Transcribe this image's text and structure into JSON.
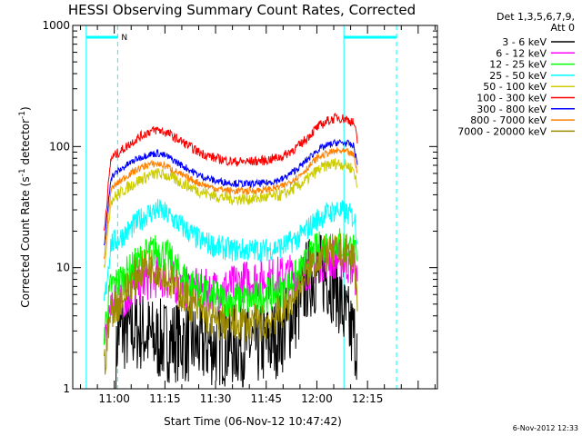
{
  "chart_data": {
    "type": "line",
    "title": "HESSI Observing Summary Count Rates, Corrected",
    "xlabel": "Start Time (06-Nov-12 10:47:42)",
    "ylabel": "Corrected Count Rate (s",
    "ylabel_sup": "-1",
    "ylabel_tail": " detector",
    "ylabel_end": ")",
    "yscale": "log",
    "ylim": [
      1,
      1000
    ],
    "xlim_min": [
      -12.3,
      35.7
    ],
    "x_units": "minutes after 11:00 UT",
    "y_ticks": [
      "1",
      "10",
      "100",
      "1000"
    ],
    "x_ticks": [
      {
        "min": 0,
        "label": "11:00"
      },
      {
        "min": 15,
        "label": "11:15"
      },
      {
        "min": 30,
        "label": "11:30"
      },
      {
        "min": 45,
        "label": "11:45"
      },
      {
        "min": 60,
        "label": "12:00"
      },
      {
        "min": 75,
        "label": "12:15"
      }
    ],
    "legend_header": [
      "Det 1,3,5,6,7,9,",
      "Att 0"
    ],
    "legend_placement": "right",
    "night_intervals": [
      {
        "start": -8.3,
        "end": 1.0,
        "label": "N"
      },
      {
        "start": 68.0,
        "end": 83.6,
        "label": ""
      }
    ],
    "night_color": "#00ffff",
    "series": [
      {
        "name": "3 - 6 keV",
        "color": "#000000",
        "x": [
          0.5,
          1.0,
          2,
          3,
          5,
          8,
          12,
          16,
          20,
          25,
          30,
          35,
          40,
          45,
          50,
          55,
          57,
          60,
          63,
          66,
          68,
          70,
          72
        ],
        "y": [
          1.3,
          3,
          3,
          3,
          3,
          3,
          2.5,
          2.5,
          2.5,
          2.3,
          2.3,
          2.3,
          2.3,
          2.3,
          3,
          5,
          8,
          9,
          8.5,
          7,
          4,
          3,
          2.5
        ],
        "noise": 0.35
      },
      {
        "name": "6 - 12 keV",
        "color": "#ff00ff",
        "x": [
          -3,
          -1,
          1,
          4,
          7,
          10,
          13,
          16,
          20,
          25,
          30,
          35,
          40,
          45,
          50,
          55,
          58,
          60,
          63,
          66,
          69,
          71,
          72
        ],
        "y": [
          2,
          5,
          5,
          6,
          7,
          8,
          8.5,
          8,
          7,
          6.5,
          6.5,
          7,
          8,
          8,
          8.5,
          9,
          10,
          11,
          12,
          12,
          11,
          10,
          7
        ],
        "noise": 0.18
      },
      {
        "name": "12 - 25 keV",
        "color": "#00ff00",
        "x": [
          -3,
          -1,
          1,
          4,
          7,
          10,
          13,
          16,
          20,
          25,
          30,
          35,
          40,
          45,
          50,
          55,
          58,
          60,
          63,
          66,
          69,
          71,
          72
        ],
        "y": [
          3,
          7,
          7.5,
          9,
          11,
          13,
          14,
          12,
          8.5,
          6.5,
          5.5,
          5.5,
          5.5,
          6,
          6.5,
          9,
          12,
          14,
          15.5,
          16,
          15,
          14,
          10
        ],
        "noise": 0.15
      },
      {
        "name": "25 - 50 keV",
        "color": "#00ffff",
        "x": [
          -3,
          -1,
          1,
          4,
          7,
          10,
          13,
          16,
          20,
          25,
          30,
          35,
          40,
          45,
          50,
          55,
          58,
          60,
          63,
          66,
          69,
          71,
          72
        ],
        "y": [
          5,
          16,
          17,
          20,
          24,
          28,
          30,
          27,
          22,
          17,
          15,
          14,
          14,
          14,
          15,
          18,
          22,
          25,
          28,
          30,
          28,
          26,
          18
        ],
        "noise": 0.1
      },
      {
        "name": "50 - 100 keV",
        "color": "#cccc00",
        "x": [
          -3,
          -1,
          1,
          4,
          7,
          10,
          13,
          16,
          20,
          25,
          30,
          35,
          40,
          45,
          50,
          55,
          58,
          60,
          63,
          66,
          69,
          71,
          72
        ],
        "y": [
          10,
          36,
          40,
          46,
          52,
          57,
          60,
          57,
          50,
          43,
          39,
          37,
          37,
          38,
          40,
          48,
          56,
          63,
          70,
          73,
          70,
          64,
          45
        ],
        "noise": 0.05
      },
      {
        "name": "100 - 300 keV",
        "color": "#ff0000",
        "x": [
          -3,
          -1,
          1,
          4,
          7,
          10,
          13,
          16,
          20,
          25,
          30,
          35,
          40,
          45,
          50,
          55,
          58,
          60,
          63,
          66,
          69,
          71,
          72
        ],
        "y": [
          20,
          80,
          88,
          102,
          118,
          132,
          138,
          128,
          110,
          90,
          80,
          75,
          75,
          77,
          83,
          103,
          125,
          143,
          162,
          174,
          168,
          156,
          110
        ],
        "noise": 0.04
      },
      {
        "name": "300 - 800 keV",
        "color": "#0000ff",
        "x": [
          -3,
          -1,
          1,
          4,
          7,
          10,
          13,
          16,
          20,
          25,
          30,
          35,
          40,
          45,
          50,
          55,
          58,
          60,
          63,
          66,
          69,
          71,
          72
        ],
        "y": [
          15,
          56,
          62,
          71,
          80,
          86,
          88,
          82,
          70,
          58,
          52,
          50,
          49,
          50,
          54,
          68,
          82,
          93,
          102,
          108,
          106,
          100,
          70
        ],
        "noise": 0.03
      },
      {
        "name": "800 - 7000 keV",
        "color": "#ff8000",
        "x": [
          -3,
          -1,
          1,
          4,
          7,
          10,
          13,
          16,
          20,
          25,
          30,
          35,
          40,
          45,
          50,
          55,
          58,
          60,
          63,
          66,
          69,
          71,
          72
        ],
        "y": [
          12,
          44,
          50,
          58,
          65,
          71,
          72,
          68,
          58,
          50,
          45,
          43,
          43,
          44,
          47,
          58,
          70,
          80,
          88,
          92,
          90,
          84,
          60
        ],
        "noise": 0.03
      },
      {
        "name": "7000 - 20000 keV",
        "color": "#9b8a00",
        "x": [
          -3,
          -1,
          1,
          4,
          7,
          10,
          13,
          16,
          20,
          25,
          30,
          35,
          40,
          45,
          50,
          55,
          58,
          60,
          63,
          66,
          69,
          71,
          72
        ],
        "y": [
          1.5,
          4.5,
          5,
          7,
          9,
          10.5,
          10,
          8,
          6,
          4.5,
          3.5,
          3.5,
          3.5,
          3.5,
          4.5,
          7,
          10,
          12,
          13,
          13.5,
          13,
          12,
          6
        ],
        "noise": 0.16
      }
    ]
  },
  "timestamp": "6-Nov-2012 12:33"
}
